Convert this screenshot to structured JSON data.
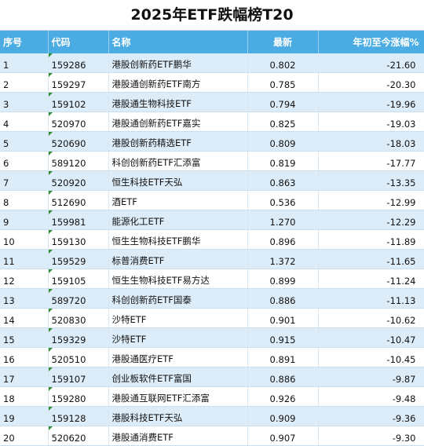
{
  "title": "2025年ETF跌幅榜T20",
  "headers": {
    "rank": "序号",
    "code": "代码",
    "name": "名称",
    "latest": "最新",
    "ytd": "年初至今涨幅%"
  },
  "rows": [
    {
      "rank": "1",
      "code": "159286",
      "name": "港股创新药ETF鹏华",
      "latest": "0.802",
      "ytd": "-21.60"
    },
    {
      "rank": "2",
      "code": "159297",
      "name": "港股通创新药ETF南方",
      "latest": "0.785",
      "ytd": "-20.30"
    },
    {
      "rank": "3",
      "code": "159102",
      "name": "港股通生物科技ETF",
      "latest": "0.794",
      "ytd": "-19.96"
    },
    {
      "rank": "4",
      "code": "520970",
      "name": "港股通创新药ETF嘉实",
      "latest": "0.825",
      "ytd": "-19.03"
    },
    {
      "rank": "5",
      "code": "520690",
      "name": "港股创新药精选ETF",
      "latest": "0.809",
      "ytd": "-18.03"
    },
    {
      "rank": "6",
      "code": "589120",
      "name": "科创创新药ETF汇添富",
      "latest": "0.819",
      "ytd": "-17.77"
    },
    {
      "rank": "7",
      "code": "520920",
      "name": "恒生科技ETF天弘",
      "latest": "0.863",
      "ytd": "-13.35"
    },
    {
      "rank": "8",
      "code": "512690",
      "name": "酒ETF",
      "latest": "0.536",
      "ytd": "-12.99"
    },
    {
      "rank": "9",
      "code": "159981",
      "name": "能源化工ETF",
      "latest": "1.270",
      "ytd": "-12.29"
    },
    {
      "rank": "10",
      "code": "159130",
      "name": "恒生生物科技ETF鹏华",
      "latest": "0.896",
      "ytd": "-11.89"
    },
    {
      "rank": "11",
      "code": "159529",
      "name": "标普消费ETF",
      "latest": "1.372",
      "ytd": "-11.65"
    },
    {
      "rank": "12",
      "code": "159105",
      "name": "恒生生物科技ETF易方达",
      "latest": "0.899",
      "ytd": "-11.24"
    },
    {
      "rank": "13",
      "code": "589720",
      "name": "科创创新药ETF国泰",
      "latest": "0.886",
      "ytd": "-11.13"
    },
    {
      "rank": "14",
      "code": "520830",
      "name": "沙特ETF",
      "latest": "0.901",
      "ytd": "-10.62"
    },
    {
      "rank": "15",
      "code": "159329",
      "name": "沙特ETF",
      "latest": "0.915",
      "ytd": "-10.47"
    },
    {
      "rank": "16",
      "code": "520510",
      "name": "港股通医疗ETF",
      "latest": "0.891",
      "ytd": "-10.45"
    },
    {
      "rank": "17",
      "code": "159107",
      "name": "创业板软件ETF富国",
      "latest": "0.886",
      "ytd": "-9.87"
    },
    {
      "rank": "18",
      "code": "159280",
      "name": "港股通互联网ETF汇添富",
      "latest": "0.926",
      "ytd": "-9.48"
    },
    {
      "rank": "19",
      "code": "159128",
      "name": "港股科技ETF天弘",
      "latest": "0.909",
      "ytd": "-9.36"
    },
    {
      "rank": "20",
      "code": "520620",
      "name": "港股通消费ETF",
      "latest": "0.907",
      "ytd": "-9.30"
    }
  ]
}
